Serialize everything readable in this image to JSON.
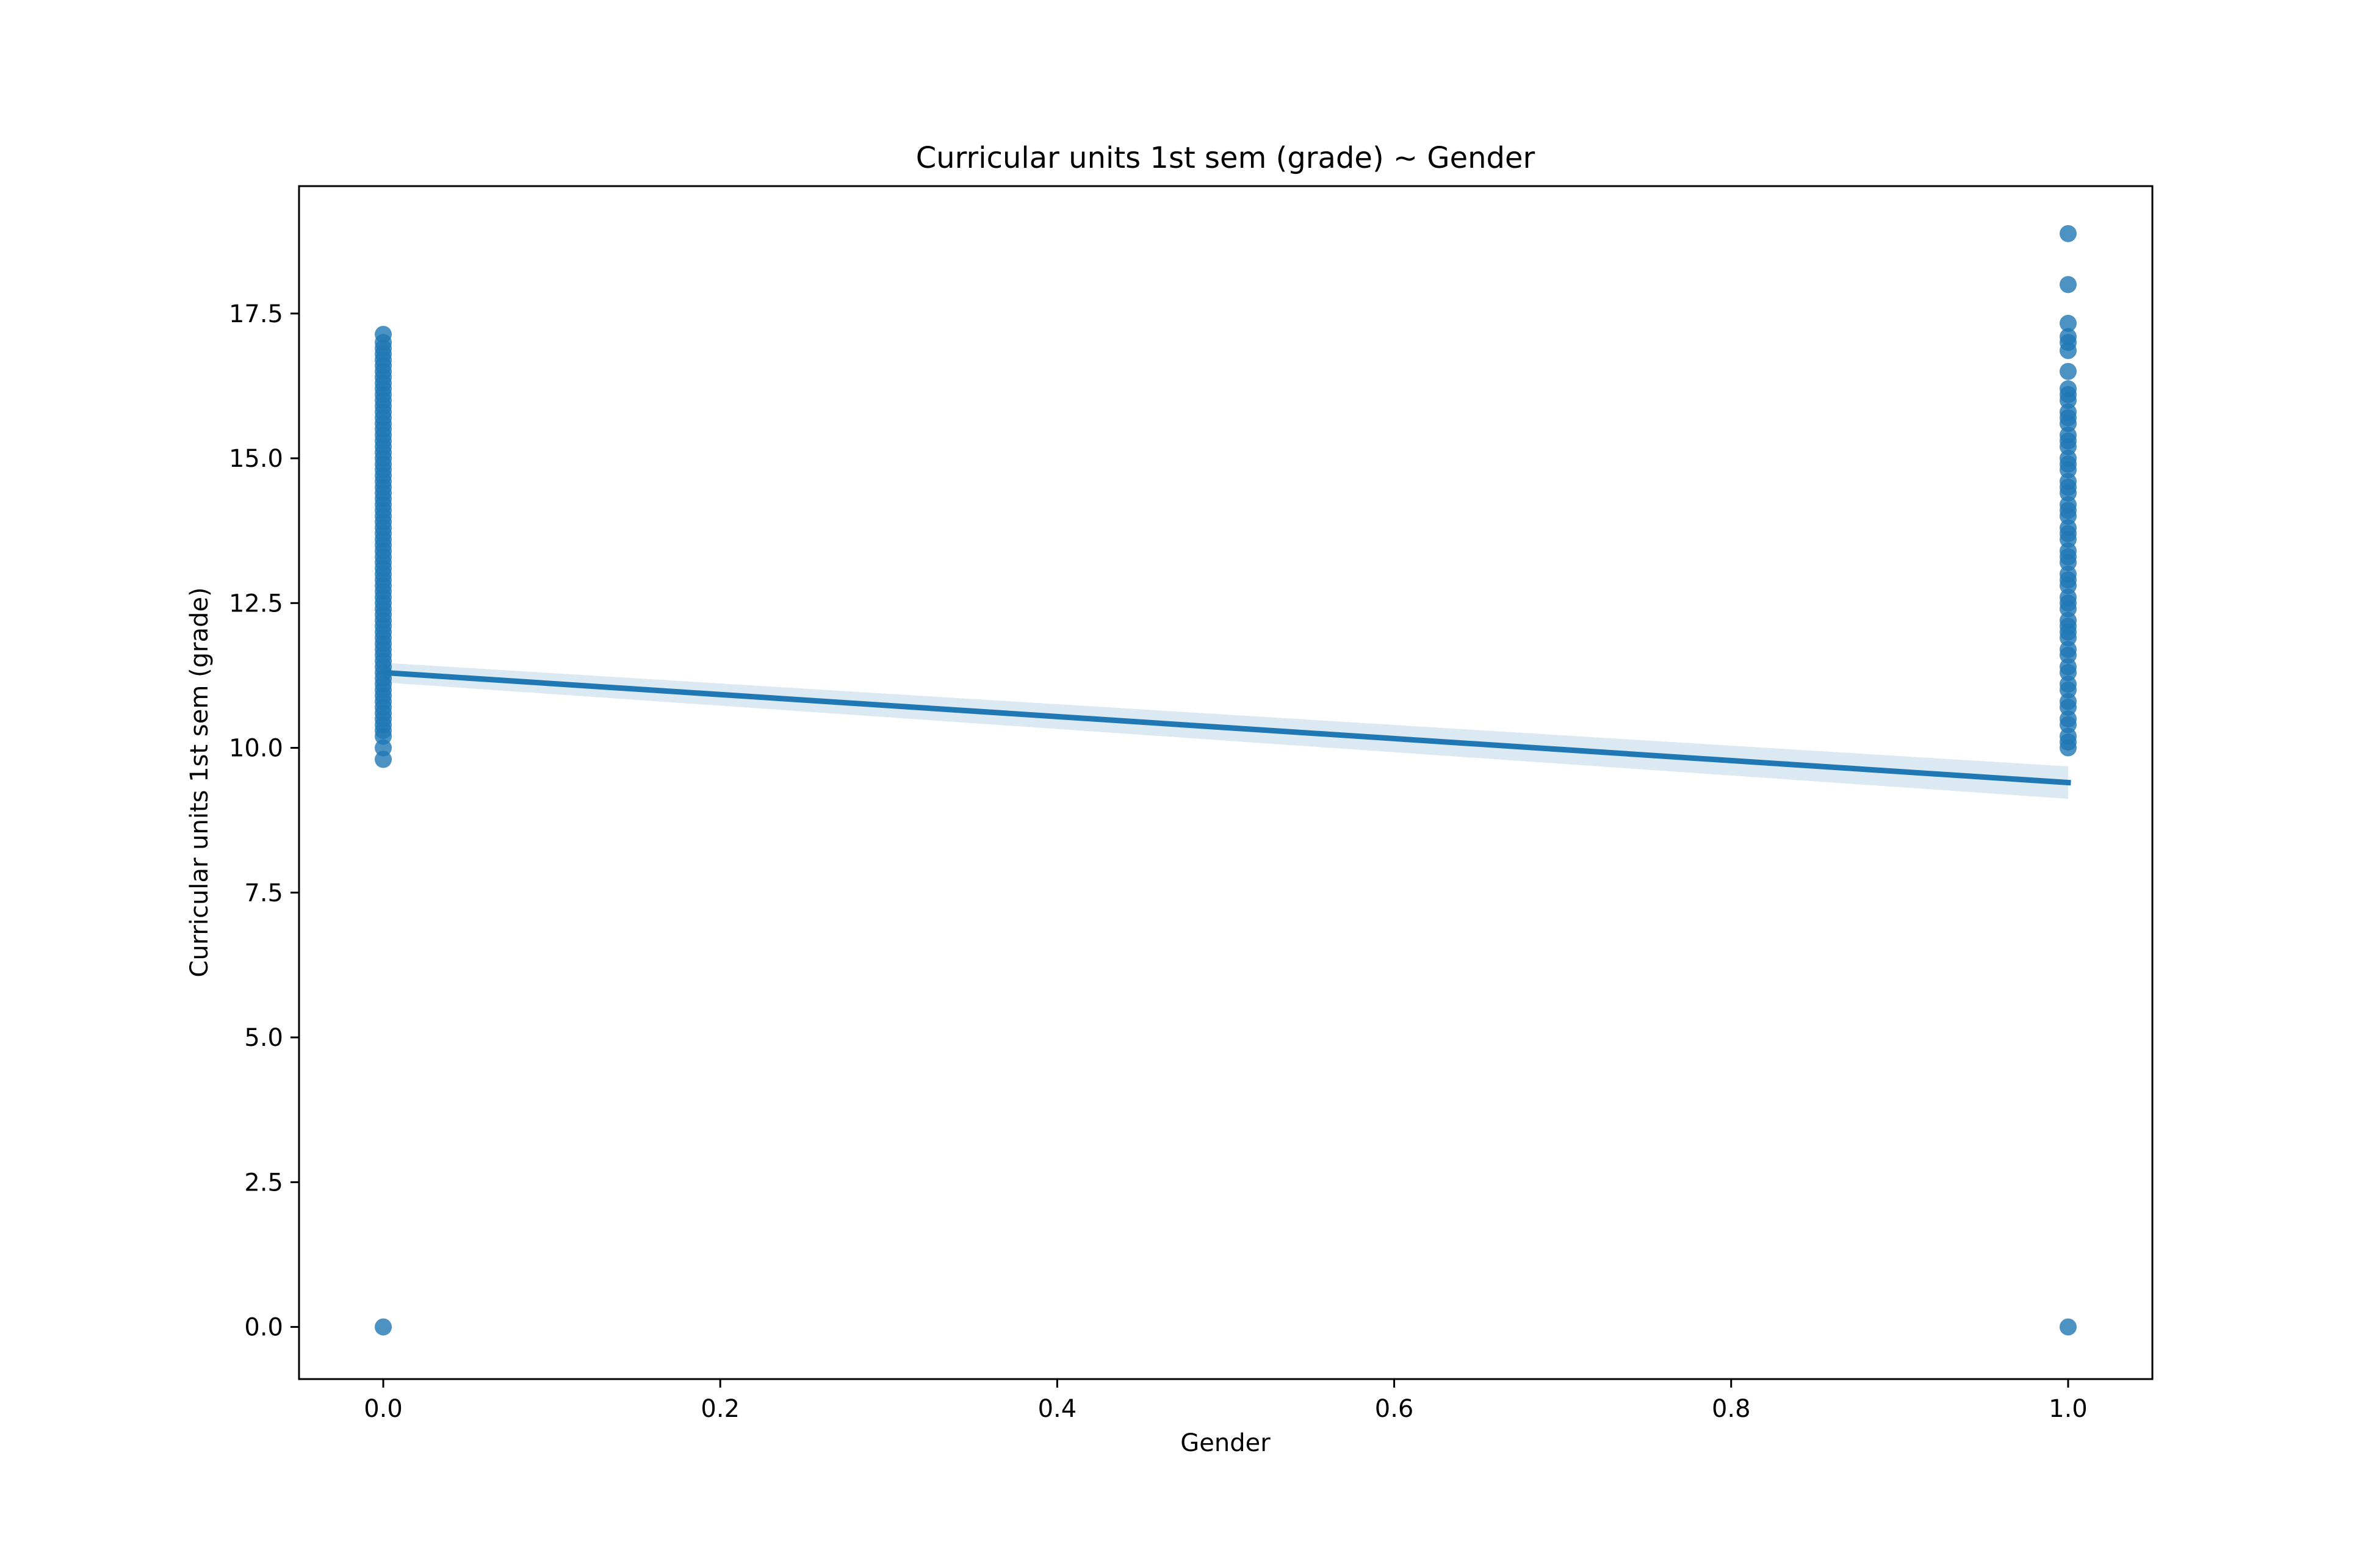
{
  "chart_data": {
    "type": "scatter",
    "title": "Curricular units 1st sem (grade) ~ Gender",
    "xlabel": "Gender",
    "ylabel": "Curricular units 1st sem (grade)",
    "xlim": [
      -0.05,
      1.05
    ],
    "ylim": [
      -0.9,
      19.7
    ],
    "grid": false,
    "legend": "none",
    "x_ticks": [
      0.0,
      0.2,
      0.4,
      0.6,
      0.8,
      1.0
    ],
    "x_tick_labels": [
      "0.0",
      "0.2",
      "0.4",
      "0.6",
      "0.8",
      "1.0"
    ],
    "y_ticks": [
      0.0,
      2.5,
      5.0,
      7.5,
      10.0,
      12.5,
      15.0,
      17.5
    ],
    "y_tick_labels": [
      "0.0",
      "2.5",
      "5.0",
      "7.5",
      "10.0",
      "12.5",
      "15.0",
      "17.5"
    ],
    "colors": {
      "points": "#1f77b4",
      "line": "#1f77b4",
      "band": "#1f77b4"
    },
    "series": [
      {
        "points_x0": [
          0,
          9.8,
          10.0,
          10.2,
          10.3,
          10.4,
          10.5,
          10.6,
          10.7,
          10.8,
          10.9,
          11.0,
          11.1,
          11.2,
          11.3,
          11.4,
          11.5,
          11.6,
          11.7,
          11.8,
          11.9,
          12.0,
          12.1,
          12.2,
          12.3,
          12.4,
          12.5,
          12.6,
          12.7,
          12.8,
          12.9,
          13.0,
          13.1,
          13.2,
          13.3,
          13.4,
          13.5,
          13.6,
          13.7,
          13.8,
          13.9,
          14.0,
          14.1,
          14.2,
          14.3,
          14.4,
          14.5,
          14.6,
          14.7,
          14.8,
          14.9,
          15.0,
          15.1,
          15.2,
          15.3,
          15.4,
          15.5,
          15.6,
          15.7,
          15.8,
          15.9,
          16.0,
          16.1,
          16.2,
          16.3,
          16.4,
          16.5,
          16.6,
          16.7,
          16.8,
          16.9,
          17.0,
          17.14
        ],
        "points_x1": [
          0,
          10.0,
          10.1,
          10.2,
          10.4,
          10.5,
          10.7,
          10.8,
          11.0,
          11.1,
          11.3,
          11.4,
          11.6,
          11.7,
          11.9,
          12.0,
          12.1,
          12.2,
          12.4,
          12.5,
          12.6,
          12.8,
          12.9,
          13.0,
          13.2,
          13.3,
          13.4,
          13.6,
          13.7,
          13.8,
          14.0,
          14.1,
          14.2,
          14.4,
          14.5,
          14.6,
          14.8,
          14.9,
          15.0,
          15.2,
          15.3,
          15.4,
          15.6,
          15.7,
          15.8,
          16.0,
          16.1,
          16.2,
          16.5,
          16.86,
          17.0,
          17.1,
          17.33,
          18.0,
          18.88
        ]
      }
    ],
    "regression": {
      "x": [
        0.0,
        1.0
      ],
      "y": [
        11.3,
        9.4
      ],
      "ci_halfwidth": [
        0.17,
        0.28
      ]
    }
  }
}
